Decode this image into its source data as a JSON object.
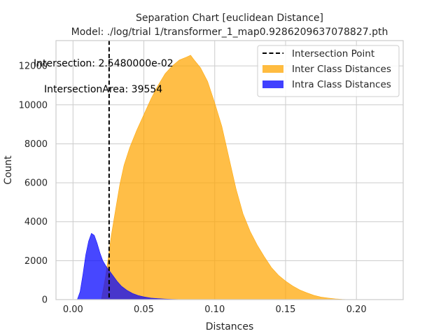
{
  "chart_data": {
    "type": "area",
    "title": "Separation Chart [euclidean Distance]",
    "subtitle": "Model: ./log/trial 1/transformer_1_map0.9286209637078827.pth",
    "xlabel": "Distances",
    "ylabel": "Count",
    "xlim": [
      -0.012,
      0.233
    ],
    "ylim": [
      0,
      13300
    ],
    "x_ticks": [
      0.0,
      0.05,
      0.1,
      0.15,
      0.2
    ],
    "x_tick_labels": [
      "0.00",
      "0.05",
      "0.10",
      "0.15",
      "0.20"
    ],
    "y_ticks": [
      0,
      2000,
      4000,
      6000,
      8000,
      10000,
      12000
    ],
    "y_tick_labels": [
      "0",
      "2000",
      "4000",
      "6000",
      "8000",
      "10000",
      "12000"
    ],
    "grid": true,
    "legend_position": "top-right",
    "series": [
      {
        "name": "Inter Class Distances",
        "color": "#ffa500",
        "x": [
          0.02,
          0.023,
          0.025,
          0.027,
          0.03,
          0.033,
          0.036,
          0.04,
          0.045,
          0.05,
          0.055,
          0.06,
          0.065,
          0.07,
          0.075,
          0.08,
          0.083,
          0.085,
          0.09,
          0.095,
          0.1,
          0.105,
          0.11,
          0.115,
          0.12,
          0.125,
          0.13,
          0.135,
          0.14,
          0.145,
          0.15,
          0.155,
          0.16,
          0.165,
          0.17,
          0.175,
          0.18,
          0.185,
          0.19,
          0.195
        ],
        "values": [
          0,
          1200,
          2200,
          3300,
          4600,
          5900,
          6900,
          7800,
          8700,
          9500,
          10300,
          11000,
          11600,
          12000,
          12300,
          12450,
          12550,
          12350,
          11900,
          11200,
          10100,
          8900,
          7300,
          5700,
          4400,
          3500,
          2800,
          2200,
          1650,
          1250,
          950,
          700,
          500,
          350,
          220,
          130,
          80,
          40,
          15,
          0
        ]
      },
      {
        "name": "Intra Class Distances",
        "color": "#0000ff",
        "x": [
          0.003,
          0.005,
          0.007,
          0.009,
          0.011,
          0.013,
          0.015,
          0.017,
          0.019,
          0.021,
          0.023,
          0.025,
          0.028,
          0.031,
          0.034,
          0.038,
          0.042,
          0.046,
          0.05,
          0.055,
          0.06,
          0.065,
          0.07,
          0.075,
          0.08
        ],
        "values": [
          0,
          400,
          1300,
          2300,
          3000,
          3400,
          3300,
          2900,
          2400,
          2000,
          1750,
          1550,
          1250,
          950,
          700,
          480,
          320,
          210,
          140,
          80,
          50,
          30,
          15,
          8,
          0
        ]
      }
    ],
    "intersection_point": {
      "name": "Intersection Point",
      "x": 0.02548
    },
    "annotations": [
      "Intersection: 2.5480000e-02",
      "IntersectionArea: 39554"
    ]
  }
}
